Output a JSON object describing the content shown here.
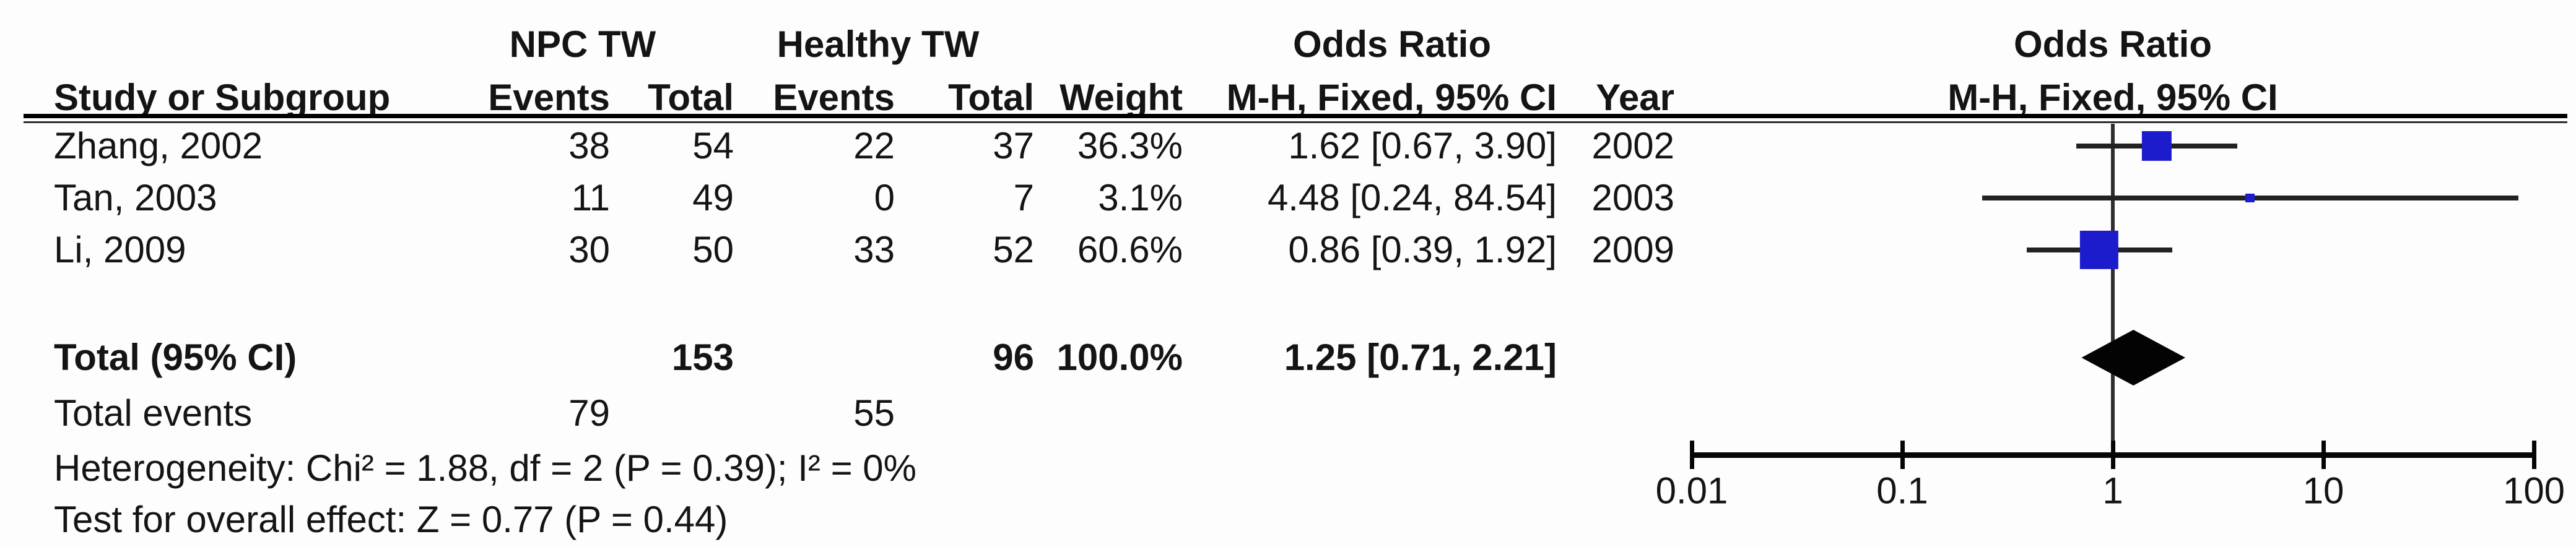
{
  "colors": {
    "marker_blue": "#1c1ccc",
    "diamond_black": "#030303",
    "line_black": "#050505",
    "text": "#141414"
  },
  "table": {
    "headers": {
      "group1": "NPC TW",
      "group2": "Healthy TW",
      "odds_ratio": "Odds Ratio",
      "study": "Study or Subgroup",
      "events": "Events",
      "total": "Total",
      "weight": "Weight",
      "method": "M-H, Fixed, 95% CI",
      "year": "Year"
    },
    "rows": [
      {
        "name": "Zhang, 2002",
        "events1": "38",
        "total1": "54",
        "events2": "22",
        "total2": "37",
        "weight": "36.3%",
        "or_ci": "1.62 [0.67, 3.90]",
        "year": "2002"
      },
      {
        "name": "Tan, 2003",
        "events1": "11",
        "total1": "49",
        "events2": "0",
        "total2": "7",
        "weight": "3.1%",
        "or_ci": "4.48 [0.24, 84.54]",
        "year": "2003"
      },
      {
        "name": "Li, 2009",
        "events1": "30",
        "total1": "50",
        "events2": "33",
        "total2": "52",
        "weight": "60.6%",
        "or_ci": "0.86 [0.39, 1.92]",
        "year": "2009"
      }
    ],
    "total_row": {
      "label": "Total (95% CI)",
      "total1": "153",
      "total2": "96",
      "weight": "100.0%",
      "or_ci": "1.25 [0.71, 2.21]"
    },
    "total_events_row": {
      "label": "Total events",
      "events1": "79",
      "events2": "55"
    },
    "footnotes": {
      "heterogeneity": "Heterogeneity: Chi² = 1.88, df = 2 (P = 0.39); I² = 0%",
      "overall_effect": "Test for overall effect: Z = 0.77 (P = 0.44)"
    }
  },
  "plot": {
    "title": "Odds Ratio",
    "subtitle": "M-H, Fixed, 95% CI",
    "tick_labels": [
      "0.01",
      "0.1",
      "1",
      "10",
      "100"
    ]
  },
  "chart_data": {
    "type": "scatter",
    "subtype": "forest-plot",
    "title": "Odds Ratio",
    "method": "M-H, Fixed, 95% CI",
    "x_scale": "log10",
    "x_ticks": [
      0.01,
      0.1,
      1,
      10,
      100
    ],
    "xlim": [
      0.01,
      100
    ],
    "null_line_value": 1,
    "studies": [
      {
        "label": "Zhang, 2002",
        "or": 1.62,
        "ci_low": 0.67,
        "ci_high": 3.9,
        "weight_pct": 36.3,
        "year": "2002"
      },
      {
        "label": "Tan, 2003",
        "or": 4.48,
        "ci_low": 0.24,
        "ci_high": 84.54,
        "weight_pct": 3.1,
        "year": "2003"
      },
      {
        "label": "Li, 2009",
        "or": 0.86,
        "ci_low": 0.39,
        "ci_high": 1.92,
        "weight_pct": 60.6,
        "year": "2009"
      }
    ],
    "overall": {
      "label": "Total (95% CI)",
      "or": 1.25,
      "ci_low": 0.71,
      "ci_high": 2.21,
      "weight_pct": 100.0
    },
    "totals": {
      "group1_total": 153,
      "group2_total": 96,
      "group1_events": 79,
      "group2_events": 55
    },
    "heterogeneity": {
      "chi2": 1.88,
      "df": 2,
      "p": 0.39,
      "i2_pct": 0
    },
    "overall_effect_test": {
      "z": 0.77,
      "p": 0.44
    }
  }
}
